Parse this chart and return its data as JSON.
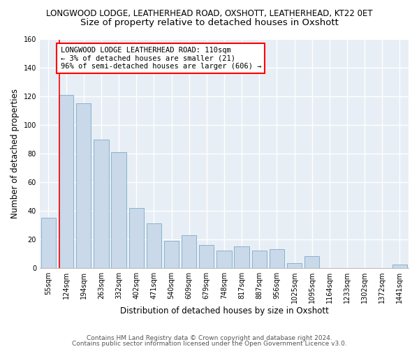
{
  "title": "LONGWOOD LODGE, LEATHERHEAD ROAD, OXSHOTT, LEATHERHEAD, KT22 0ET",
  "subtitle": "Size of property relative to detached houses in Oxshott",
  "xlabel": "Distribution of detached houses by size in Oxshott",
  "ylabel": "Number of detached properties",
  "categories": [
    "55sqm",
    "124sqm",
    "194sqm",
    "263sqm",
    "332sqm",
    "402sqm",
    "471sqm",
    "540sqm",
    "609sqm",
    "679sqm",
    "748sqm",
    "817sqm",
    "887sqm",
    "956sqm",
    "1025sqm",
    "1095sqm",
    "1164sqm",
    "1233sqm",
    "1302sqm",
    "1372sqm",
    "1441sqm"
  ],
  "values": [
    35,
    121,
    115,
    90,
    81,
    42,
    31,
    19,
    23,
    16,
    12,
    15,
    12,
    13,
    3,
    8,
    0,
    0,
    0,
    0,
    2
  ],
  "bar_color": "#c9d9e9",
  "bar_edge_color": "#7aaac8",
  "annotation_text": "LONGWOOD LODGE LEATHERHEAD ROAD: 110sqm\n← 3% of detached houses are smaller (21)\n96% of semi-detached houses are larger (606) →",
  "annotation_box_color": "white",
  "annotation_box_edge_color": "red",
  "red_line_x": 0.6,
  "ylim": [
    0,
    160
  ],
  "yticks": [
    0,
    20,
    40,
    60,
    80,
    100,
    120,
    140,
    160
  ],
  "footer1": "Contains HM Land Registry data © Crown copyright and database right 2024.",
  "footer2": "Contains public sector information licensed under the Open Government Licence v3.0.",
  "bg_color": "#ffffff",
  "plot_bg_color": "#e8eef5",
  "grid_color": "#ffffff",
  "title_fontsize": 8.5,
  "subtitle_fontsize": 9.5,
  "axis_label_fontsize": 8.5,
  "tick_fontsize": 7,
  "annotation_fontsize": 7.5,
  "footer_fontsize": 6.5
}
